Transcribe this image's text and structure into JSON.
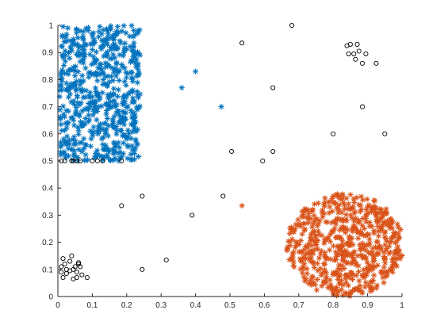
{
  "chart_data": {
    "type": "scatter",
    "title": "",
    "xlabel": "",
    "ylabel": "",
    "xlim": [
      0,
      1
    ],
    "ylim": [
      0,
      1
    ],
    "grid": false,
    "box": "left-bottom axes only",
    "xticks": [
      "0",
      "0.1",
      "0.2",
      "0.3",
      "0.4",
      "0.5",
      "0.6",
      "0.7",
      "0.8",
      "0.9",
      "1"
    ],
    "yticks": [
      "0",
      "0.1",
      "0.2",
      "0.3",
      "0.4",
      "0.5",
      "0.6",
      "0.7",
      "0.8",
      "0.9",
      "1"
    ],
    "series": [
      {
        "marker": "asterisk",
        "color": "#0072BD",
        "description_region": "dense cluster filling x 0–0.24, y 0.5–1",
        "region": {
          "shape": "rect",
          "x": [
            0.005,
            0.24
          ],
          "y": [
            0.5,
            1.0
          ],
          "count": 620
        },
        "points": [
          [
            0.36,
            0.77
          ],
          [
            0.4,
            0.83
          ],
          [
            0.475,
            0.7
          ]
        ]
      },
      {
        "marker": "asterisk",
        "color": "#D95319",
        "region": {
          "shape": "circle",
          "cx": 0.835,
          "cy": 0.19,
          "rx": 0.17,
          "ry": 0.19,
          "count": 620
        },
        "points": [
          [
            0.535,
            0.335
          ]
        ]
      },
      {
        "marker": "circle",
        "color": "#000000",
        "points": [
          [
            0.68,
            1.0
          ],
          [
            0.535,
            0.935
          ],
          [
            0.625,
            0.77
          ],
          [
            0.885,
            0.7
          ],
          [
            0.8,
            0.6
          ],
          [
            0.95,
            0.6
          ],
          [
            0.505,
            0.535
          ],
          [
            0.625,
            0.535
          ],
          [
            0.595,
            0.5
          ],
          [
            0.84,
            0.925
          ],
          [
            0.85,
            0.93
          ],
          [
            0.87,
            0.93
          ],
          [
            0.895,
            0.895
          ],
          [
            0.86,
            0.895
          ],
          [
            0.875,
            0.905
          ],
          [
            0.865,
            0.875
          ],
          [
            0.885,
            0.86
          ],
          [
            0.925,
            0.86
          ],
          [
            0.845,
            0.895
          ],
          [
            0.01,
            0.5
          ],
          [
            0.02,
            0.5
          ],
          [
            0.045,
            0.5
          ],
          [
            0.055,
            0.5
          ],
          [
            0.065,
            0.5
          ],
          [
            0.1,
            0.5
          ],
          [
            0.115,
            0.5
          ],
          [
            0.13,
            0.5
          ],
          [
            0.185,
            0.5
          ],
          [
            0.04,
            0.5
          ],
          [
            0.245,
            0.37
          ],
          [
            0.185,
            0.335
          ],
          [
            0.48,
            0.37
          ],
          [
            0.39,
            0.3
          ],
          [
            0.315,
            0.135
          ],
          [
            0.245,
            0.1
          ],
          [
            0.01,
            0.11
          ],
          [
            0.015,
            0.14
          ],
          [
            0.02,
            0.12
          ],
          [
            0.025,
            0.085
          ],
          [
            0.015,
            0.07
          ],
          [
            0.035,
            0.13
          ],
          [
            0.04,
            0.15
          ],
          [
            0.045,
            0.1
          ],
          [
            0.05,
            0.11
          ],
          [
            0.055,
            0.09
          ],
          [
            0.06,
            0.12
          ],
          [
            0.065,
            0.11
          ],
          [
            0.07,
            0.08
          ],
          [
            0.045,
            0.065
          ],
          [
            0.055,
            0.07
          ],
          [
            0.085,
            0.07
          ],
          [
            0.025,
            0.1
          ],
          [
            0.035,
            0.095
          ],
          [
            0.01,
            0.09
          ],
          [
            0.06,
            0.125
          ]
        ]
      }
    ]
  }
}
